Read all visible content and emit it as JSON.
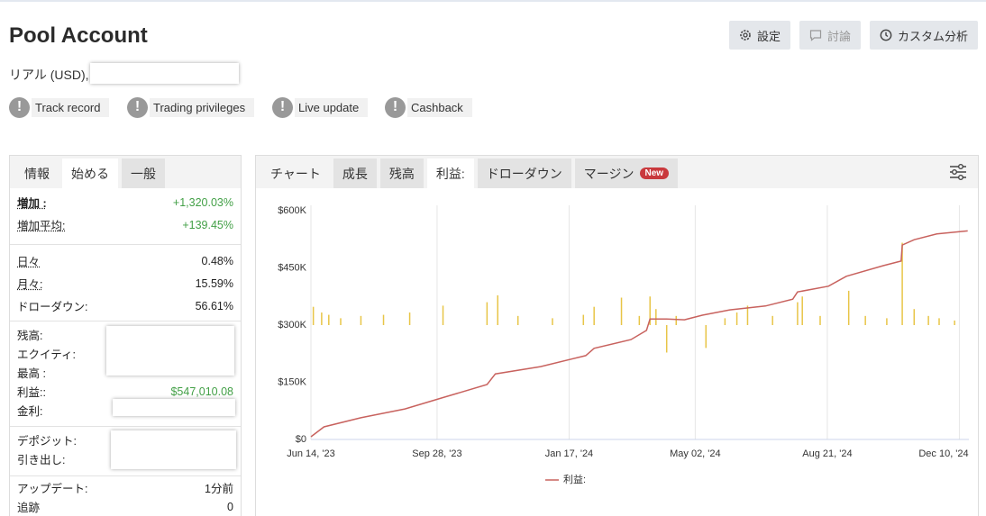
{
  "header": {
    "title": "Pool Account",
    "account": "リアル (USD),",
    "buttons": [
      "設定",
      "討論",
      "カスタム分析"
    ]
  },
  "badges": [
    "Track record",
    "Trading privileges",
    "Live update",
    "Cashback"
  ],
  "stats": {
    "tabs": [
      "情報",
      "始める",
      "一般"
    ],
    "groups": [
      [
        {
          "label": "増加 :",
          "value": "+1,320.03%",
          "color": "#43a047"
        },
        {
          "label": "増加平均:",
          "value": "+139.45%",
          "color": "#43a047"
        }
      ],
      [
        {
          "label": "日々",
          "value": "0.48%"
        },
        {
          "label": "月々:",
          "value": "15.59%"
        },
        {
          "label": "ドローダウン:",
          "value": "56.61%"
        }
      ],
      [
        {
          "label": "残高:"
        },
        {
          "label": "エクイティ:"
        },
        {
          "label": "最高 :"
        },
        {
          "label": "利益::",
          "value": "$547,010.08",
          "color": "#43a047"
        },
        {
          "label": "金利:"
        }
      ],
      [
        {
          "label": "デポジット:"
        },
        {
          "label": "引き出し:"
        }
      ],
      [
        {
          "label": "アップデート:",
          "value": "1分前"
        },
        {
          "label": "追跡",
          "value": "0"
        }
      ]
    ]
  },
  "chart_tabs": [
    "チャート",
    "成長",
    "残高",
    "利益:",
    "ドローダウン",
    "マージン"
  ],
  "new_badge": "New",
  "chart_data": {
    "type": "line",
    "xlim": [
      "2023-06-14",
      "2024-12-18"
    ],
    "xticks": [
      {
        "value": "2023-06-14",
        "label": "Jun 14, '23"
      },
      {
        "value": "2023-09-28",
        "label": "Sep 28, '23"
      },
      {
        "value": "2024-01-17",
        "label": "Jan 17, '24"
      },
      {
        "value": "2024-05-02",
        "label": "May 02, '24"
      },
      {
        "value": "2024-08-21",
        "label": "Aug 21, '24"
      },
      {
        "value": "2024-12-10",
        "label": "Dec 10, '24"
      }
    ],
    "ylim": [
      0,
      600000
    ],
    "yticks": [
      {
        "value": 0,
        "label": "$0"
      },
      {
        "value": 150000,
        "label": "$150K"
      },
      {
        "value": 300000,
        "label": "$300K"
      },
      {
        "value": 450000,
        "label": "$450K"
      },
      {
        "value": 600000,
        "label": "$600K"
      }
    ],
    "y2lim": [
      -10000,
      10000
    ],
    "grid": "x",
    "series": [
      {
        "name": "利益:",
        "color": "#c8625e",
        "x": [
          "2023-06-14",
          "2023-06-25",
          "2023-07-26",
          "2023-09-01",
          "2023-10-02",
          "2023-11-09",
          "2023-11-16",
          "2023-12-24",
          "2024-01-31",
          "2024-02-07",
          "2024-03-09",
          "2024-03-22",
          "2024-03-25",
          "2024-04-08",
          "2024-04-23",
          "2024-05-08",
          "2024-05-31",
          "2024-06-30",
          "2024-07-23",
          "2024-07-27",
          "2024-08-22",
          "2024-09-06",
          "2024-10-07",
          "2024-10-22",
          "2024-10-23",
          "2024-11-02",
          "2024-11-21",
          "2024-12-17"
        ],
        "values": [
          7000,
          33000,
          57000,
          80000,
          109000,
          144000,
          172000,
          191000,
          220000,
          239000,
          262000,
          286000,
          316000,
          316000,
          314000,
          326000,
          340000,
          350000,
          368000,
          387000,
          402000,
          428000,
          456000,
          468000,
          510000,
          524000,
          539000,
          547000
        ]
      },
      {
        "type": "bar",
        "axis": "y2",
        "color": "#e8c547",
        "x": [
          "2023-06-16",
          "2023-06-23",
          "2023-06-29",
          "2023-07-09",
          "2023-07-26",
          "2023-08-14",
          "2023-09-05",
          "2023-10-03",
          "2023-11-09",
          "2023-11-18",
          "2023-12-05",
          "2024-01-03",
          "2024-01-29",
          "2024-02-07",
          "2024-03-01",
          "2024-03-16",
          "2024-03-25",
          "2024-03-30",
          "2024-04-08",
          "2024-04-16",
          "2024-05-11",
          "2024-05-27",
          "2024-06-06",
          "2024-06-15",
          "2024-07-06",
          "2024-07-27",
          "2024-07-31",
          "2024-08-15",
          "2024-09-08",
          "2024-09-22",
          "2024-10-10",
          "2024-10-23",
          "2024-11-02",
          "2024-11-14",
          "2024-11-23",
          "2024-12-06"
        ],
        "values": [
          1600,
          1100,
          900,
          600,
          800,
          900,
          1100,
          1700,
          2000,
          2600,
          800,
          600,
          900,
          1600,
          2400,
          800,
          2500,
          1400,
          -2400,
          800,
          -2000,
          600,
          1100,
          1700,
          800,
          2000,
          2500,
          800,
          3000,
          800,
          600,
          7200,
          1400,
          800,
          600,
          400
        ]
      }
    ]
  }
}
